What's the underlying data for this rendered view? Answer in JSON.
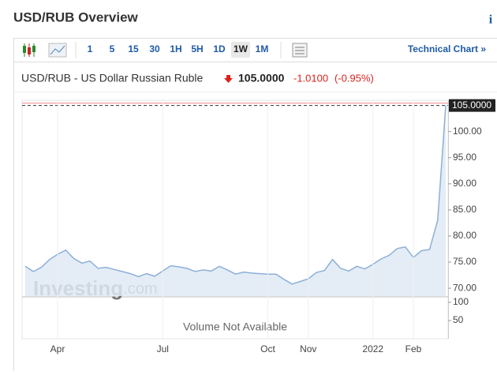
{
  "header": {
    "title": "USD/RUB Overview",
    "info": "i"
  },
  "toolbar": {
    "intervals": [
      "1",
      "5",
      "15",
      "30",
      "1H",
      "5H",
      "1D",
      "1W",
      "1M"
    ],
    "selected": "1W",
    "link": "Technical Chart »"
  },
  "quote": {
    "name": "USD/RUB - US Dollar Russian Ruble",
    "price": "105.0000",
    "change": "-1.0100",
    "change_percent": "(-0.95%)"
  },
  "chart_data": {
    "type": "area",
    "color": "#8cb0d8",
    "fill": "#dfe9f4",
    "categories": [
      null,
      null,
      null,
      null,
      "Apr",
      null,
      null,
      null,
      null,
      null,
      null,
      null,
      null,
      null,
      null,
      null,
      null,
      "Jul",
      null,
      null,
      null,
      null,
      null,
      null,
      null,
      null,
      null,
      null,
      null,
      null,
      "Oct",
      null,
      null,
      null,
      null,
      "Nov",
      null,
      null,
      null,
      null,
      null,
      null,
      null,
      "2022",
      null,
      null,
      null,
      null,
      "Feb",
      null,
      null,
      null,
      null
    ],
    "values": [
      74.2,
      73.2,
      74,
      75.5,
      76.5,
      77.3,
      75.7,
      74.8,
      75.2,
      73.8,
      74,
      73.6,
      73.2,
      72.8,
      72.2,
      72.8,
      72.3,
      73.3,
      74.3,
      74.1,
      73.8,
      73.2,
      73.5,
      73.3,
      74.2,
      73.5,
      72.7,
      73.1,
      72.9,
      72.8,
      72.7,
      72.7,
      71.7,
      70.8,
      71.3,
      71.8,
      73,
      73.4,
      75.5,
      73.8,
      73.3,
      74.2,
      73.7,
      74.6,
      75.6,
      76.3,
      77.6,
      77.9,
      75.9,
      77.2,
      77.4,
      83,
      105
    ],
    "ylim": [
      68.5,
      106
    ],
    "yticks": [
      {
        "value": 70,
        "label": "70.00"
      },
      {
        "value": 75,
        "label": "75.00"
      },
      {
        "value": 80,
        "label": "80.00"
      },
      {
        "value": 85,
        "label": "85.00"
      },
      {
        "value": 90,
        "label": "90.00"
      },
      {
        "value": 95,
        "label": "95.00"
      },
      {
        "value": 100,
        "label": "100.00"
      }
    ],
    "last_price": {
      "value": 105,
      "label": "105.0000"
    },
    "watermark": [
      "Investing",
      ".com"
    ],
    "volume": {
      "note": "Volume Not Available",
      "ylim": [
        0,
        113
      ],
      "yticks": [
        50,
        100
      ]
    }
  }
}
